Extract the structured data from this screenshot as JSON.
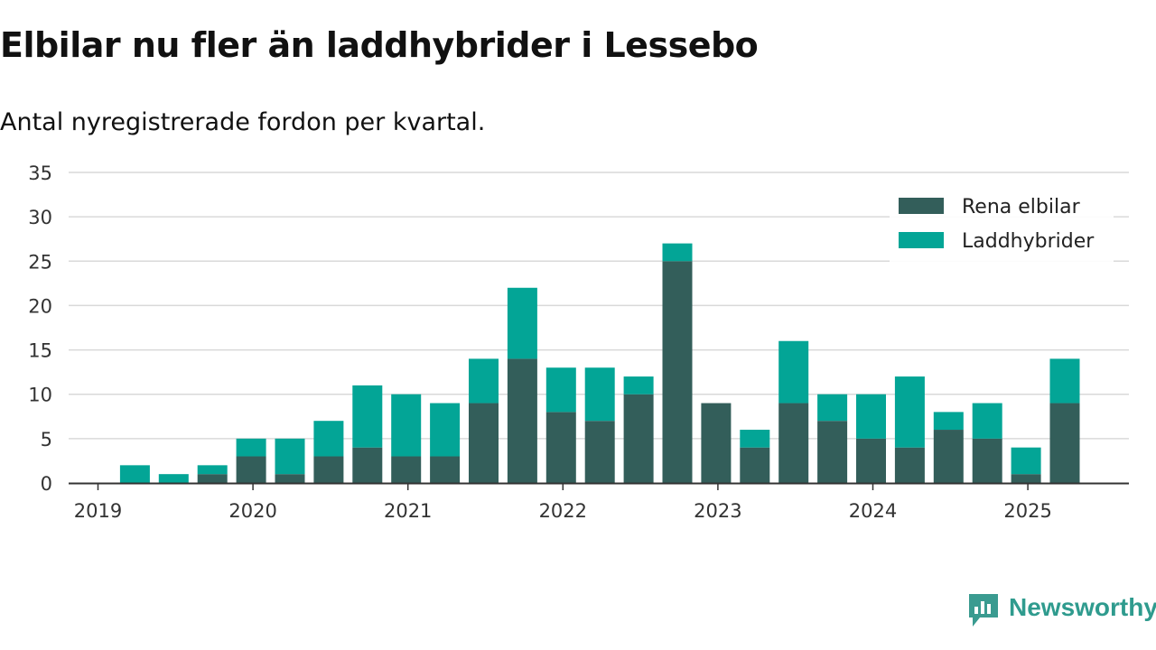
{
  "header": {
    "title": "Elbilar nu fler än laddhybrider i Lessebo",
    "subtitle": "Antal nyregistrerade fordon per kvartal."
  },
  "brand": {
    "name": "Newsworthy",
    "color": "#2f9b8e"
  },
  "chart_data": {
    "type": "bar",
    "stacked": true,
    "categories": [
      "2019 Q1",
      "2019 Q2",
      "2019 Q3",
      "2019 Q4",
      "2020 Q1",
      "2020 Q2",
      "2020 Q3",
      "2020 Q4",
      "2021 Q1",
      "2021 Q2",
      "2021 Q3",
      "2021 Q4",
      "2022 Q1",
      "2022 Q2",
      "2022 Q3",
      "2022 Q4",
      "2023 Q1",
      "2023 Q2",
      "2023 Q3",
      "2023 Q4",
      "2024 Q1",
      "2024 Q2",
      "2024 Q3",
      "2024 Q4",
      "2025 Q1",
      "2025 Q2"
    ],
    "x_tick_labels": [
      "2019",
      "2020",
      "2021",
      "2022",
      "2023",
      "2024",
      "2025"
    ],
    "series": [
      {
        "name": "Rena elbilar",
        "color": "#335e5a",
        "values": [
          0,
          0,
          0,
          1,
          3,
          1,
          3,
          4,
          3,
          3,
          9,
          14,
          8,
          7,
          10,
          25,
          9,
          4,
          9,
          7,
          5,
          4,
          6,
          5,
          1,
          9
        ]
      },
      {
        "name": "Laddhybrider",
        "color": "#03a596",
        "values": [
          0,
          2,
          1,
          1,
          2,
          4,
          4,
          7,
          7,
          6,
          5,
          8,
          5,
          6,
          2,
          2,
          0,
          2,
          7,
          3,
          5,
          8,
          2,
          4,
          3,
          5
        ]
      }
    ],
    "ylim": [
      0,
      35
    ],
    "y_ticks": [
      0,
      5,
      10,
      15,
      20,
      25,
      30,
      35
    ],
    "grid": true,
    "legend_position": "top-right"
  }
}
